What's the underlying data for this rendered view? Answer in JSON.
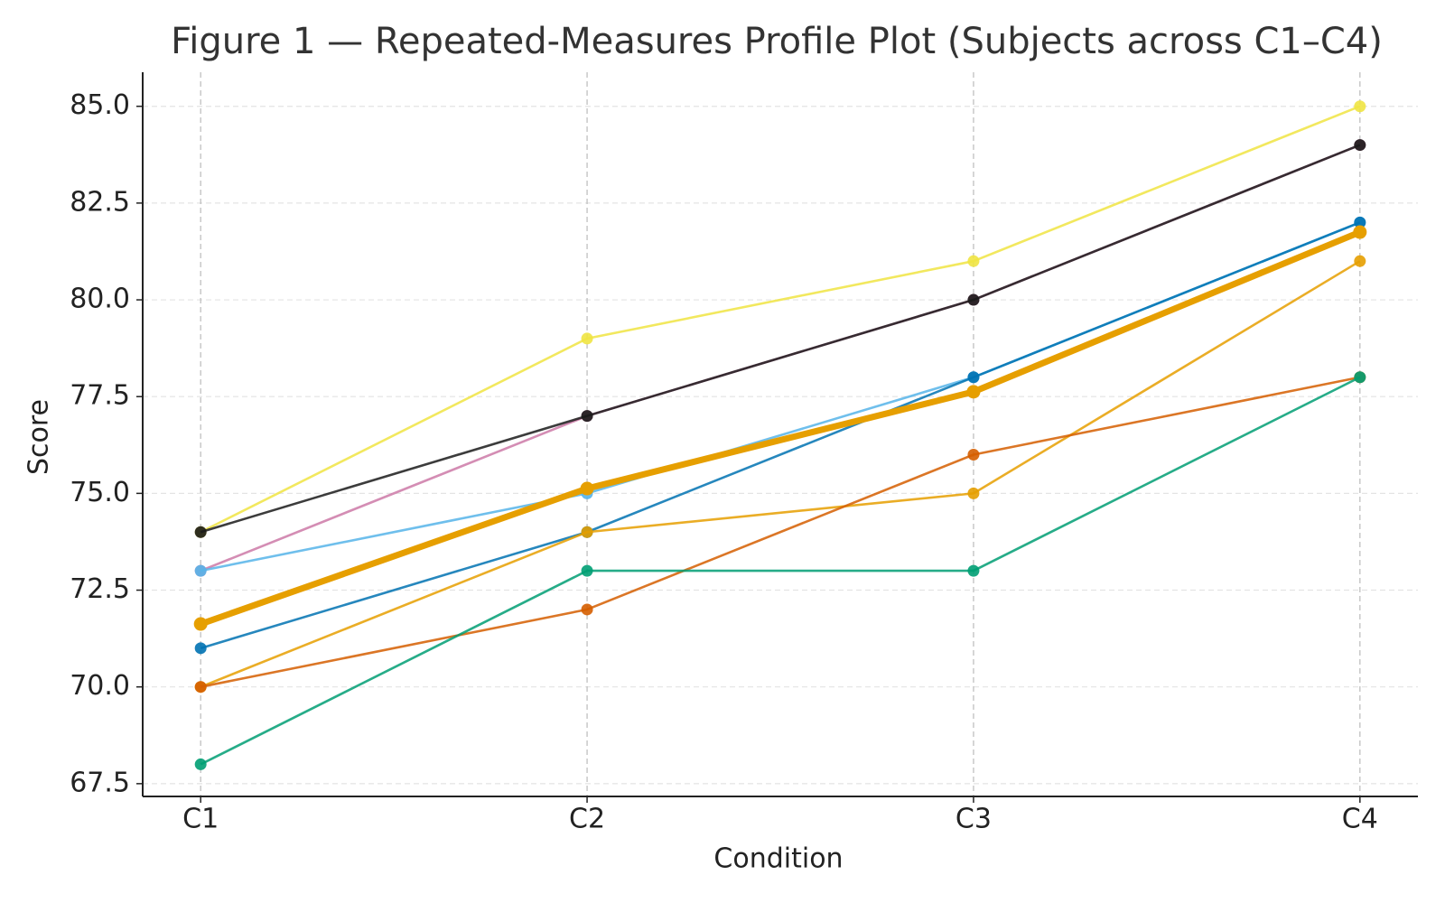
{
  "chart_data": {
    "type": "line",
    "title": "Figure 1 — Repeated-Measures Profile Plot (Subjects across C1–C4)",
    "x_label": "Condition",
    "y_label": "Score",
    "categories": [
      "C1",
      "C2",
      "C3",
      "C4"
    ],
    "series": [
      {
        "color": "#f0e442",
        "values": [
          74,
          79,
          81,
          85
        ]
      },
      {
        "color": "#cc79a7",
        "values": [
          73,
          77,
          80,
          84
        ]
      },
      {
        "color": "#1a1a1a",
        "values": [
          74,
          77,
          80,
          84
        ]
      },
      {
        "color": "#56b4e9",
        "values": [
          73,
          75,
          78,
          82
        ]
      },
      {
        "color": "#0072b2",
        "values": [
          71,
          74,
          78,
          82
        ]
      },
      {
        "color": "#e69f00",
        "values": [
          70,
          74,
          75,
          81
        ]
      },
      {
        "color": "#d55e00",
        "values": [
          70,
          72,
          76,
          78
        ]
      },
      {
        "color": "#009e73",
        "values": [
          68,
          73,
          73,
          78
        ]
      },
      {
        "color": "#e69f00",
        "values": [
          71.625,
          75.125,
          77.625,
          81.75
        ],
        "thick": true
      }
    ],
    "ylim": [
      67.17,
      85.88
    ],
    "yticks": [
      67.5,
      {
        "value": 70,
        "label": "70.0"
      },
      72.5,
      {
        "value": 75,
        "label": "75.0"
      },
      77.5,
      {
        "value": 80,
        "label": "80.0"
      },
      82.5,
      {
        "value": 85,
        "label": "85.0"
      }
    ],
    "grid": true
  }
}
